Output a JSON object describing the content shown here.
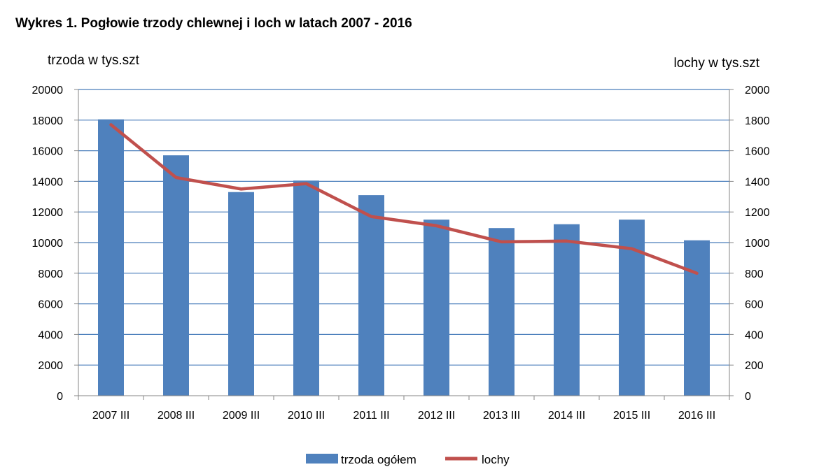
{
  "chart_data": {
    "type": "bar",
    "title": "Wykres 1.  Pogłowie trzody chlewnej i loch w latach 2007 - 2016",
    "xlabel": "",
    "categories": [
      "2007 III",
      "2008 III",
      "2009 III",
      "2010 III",
      "2011 III",
      "2012 III",
      "2013 III",
      "2014 III",
      "2015 III",
      "2016 III"
    ],
    "y_left": {
      "label": "trzoda w tys.szt",
      "ylim": [
        0,
        20000
      ],
      "ticks": [
        0,
        2000,
        4000,
        6000,
        8000,
        10000,
        12000,
        14000,
        16000,
        18000,
        20000
      ]
    },
    "y_right": {
      "label": "lochy w tys.szt",
      "ylim": [
        0,
        2000
      ],
      "ticks": [
        0,
        200,
        400,
        600,
        800,
        1000,
        1200,
        1400,
        1600,
        1800,
        2000
      ]
    },
    "grid": true,
    "legend_position": "bottom",
    "series": [
      {
        "name": "trzoda ogółem",
        "type": "bar",
        "axis": "left",
        "color": "#4f81bd",
        "values": [
          18050,
          15700,
          13300,
          14050,
          13100,
          11500,
          10950,
          11200,
          11500,
          10150
        ]
      },
      {
        "name": "lochy",
        "type": "line",
        "axis": "right",
        "color": "#c0504d",
        "values": [
          1770,
          1425,
          1350,
          1385,
          1170,
          1110,
          1005,
          1010,
          960,
          800
        ]
      }
    ]
  }
}
